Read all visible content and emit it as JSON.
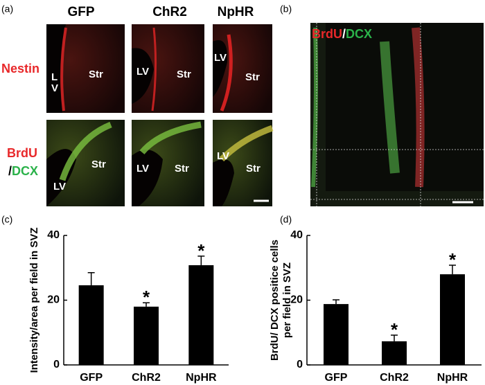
{
  "panels": {
    "a": {
      "label": "(a)",
      "columns": [
        "GFP",
        "ChR2",
        "NpHR"
      ],
      "row1": "Nestin",
      "row2": [
        "BrdU",
        "/",
        "DCX"
      ],
      "image_labels": [
        [
          "L",
          "V",
          "Str"
        ],
        [
          "LV",
          "Str"
        ],
        [
          "LV",
          "Str"
        ],
        [
          "LV",
          "Str"
        ],
        [
          "LV",
          "Str"
        ],
        [
          "LV",
          "Str"
        ]
      ]
    },
    "b": {
      "label": "(b)",
      "stain": [
        "BrdU",
        "/",
        "DCX"
      ]
    },
    "c": {
      "label": "(c)"
    },
    "d": {
      "label": "(d)"
    }
  },
  "chart_data": [
    {
      "type": "bar",
      "ylabel": [
        "Intensity/area per field in SVZ"
      ],
      "categories": [
        "GFP",
        "ChR2",
        "NpHR"
      ],
      "values": [
        24.6,
        18.0,
        30.8
      ],
      "errors": [
        3.9,
        1.2,
        2.8
      ],
      "annotations": [
        null,
        "*",
        "*"
      ],
      "color": "#000000",
      "ylim": [
        0,
        40
      ],
      "yticks": [
        0,
        20,
        40
      ]
    },
    {
      "type": "bar",
      "ylabel": [
        "BrdU/ DCX positice cells",
        "per field in SVZ"
      ],
      "categories": [
        "GFP",
        "ChR2",
        "NpHR"
      ],
      "values": [
        18.8,
        7.3,
        28.0
      ],
      "errors": [
        1.3,
        1.9,
        2.8
      ],
      "annotations": [
        null,
        "*",
        "*"
      ],
      "color": "#000000",
      "ylim": [
        0,
        40
      ],
      "yticks": [
        0,
        20,
        40
      ]
    }
  ]
}
